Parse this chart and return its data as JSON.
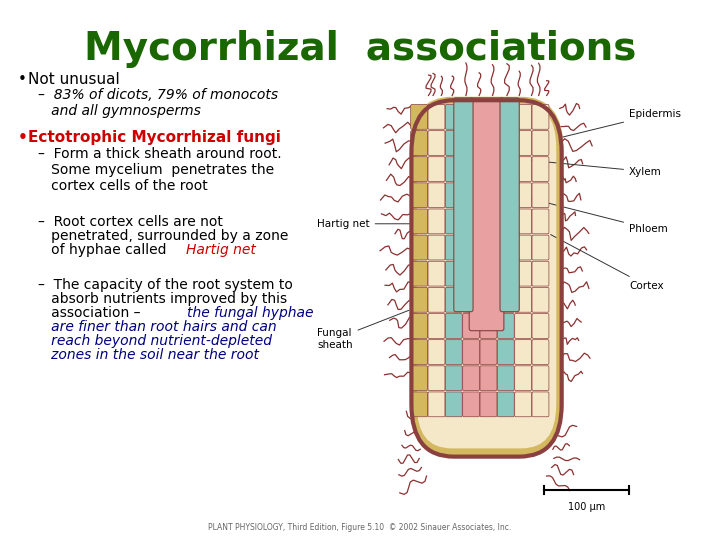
{
  "title": "Mycorrhizal  associations",
  "title_color": "#1a6600",
  "title_fontsize": 28,
  "background_color": "#ffffff",
  "bullet1_text": "Not unusual",
  "bullet1_color": "#000000",
  "sub1_text": "–  83% of dicots, 79% of monocots\n   and all gymnosperms",
  "sub1_color": "#000000",
  "bullet2_text": "Ectotrophic Mycorrhizal fungi",
  "bullet2_color": "#cc0000",
  "sub2a_text": "–  Form a thick sheath around root.\n   Some mycelium  penetrates the\n   cortex cells of the root",
  "sub2a_color": "#000000",
  "sub2b_intro": "–  Root cortex cells are not\n   penetrated, surrounded by a zone\n   of hyphae called ",
  "sub2b_hartig": "Hartig net",
  "sub2b_color": "#000000",
  "sub2b_hartig_color": "#cc0000",
  "sub2c_intro": "–  The capacity of the root system to\n   absorb nutrients improved by this\n   association – ",
  "sub2c_italic": "the fungal hyphae\n   are finer than root hairs and can\n   reach beyond nutrient-depleted\n   zones in the soil near the root",
  "sub2c_color": "#000000",
  "sub2c_italic_color": "#000080",
  "hartig_net_label": "Hartig net",
  "fungal_sheath_label": "Fungal\nsheath",
  "epidermis_label": "Epidermis",
  "xylem_label": "Xylem",
  "phloem_label": "Phloem",
  "cortex_label": "Cortex",
  "scale_label": "100 μm",
  "caption": "PLANT PHYSIOLOGY, Third Edition, Figure 5.10  © 2002 Sinauer Associates, Inc.",
  "root_cream": "#f5e8c8",
  "root_border": "#8b4040",
  "xylem_color": "#e8a0a0",
  "phloem_color": "#8bc8c0",
  "epidermis_color": "#d4b860",
  "hyphae_color": "#8b3030"
}
